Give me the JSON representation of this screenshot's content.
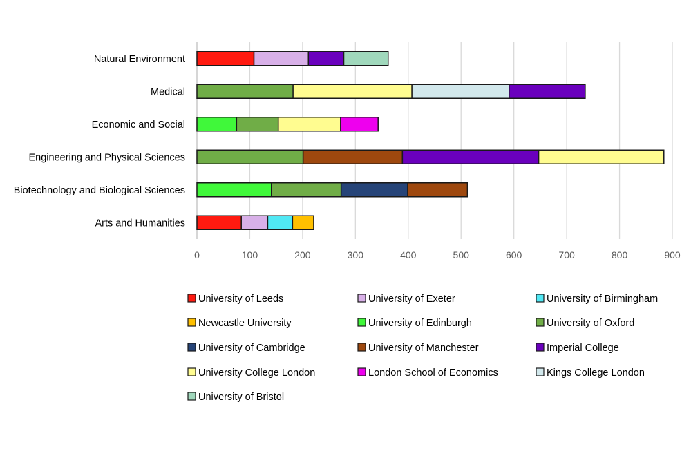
{
  "chart_data": {
    "type": "bar",
    "orientation": "horizontal",
    "stacked": true,
    "title": "",
    "xlabel": "",
    "ylabel": "",
    "xlim": [
      0,
      900
    ],
    "xticks": [
      0,
      100,
      200,
      300,
      400,
      500,
      600,
      700,
      800,
      900
    ],
    "grid": true,
    "legend_position": "bottom",
    "series": [
      {
        "name": "University of Leeds",
        "color": "#ff1a10"
      },
      {
        "name": "University of Exeter",
        "color": "#d8b0e8"
      },
      {
        "name": "University of Birmingham",
        "color": "#50e8f4"
      },
      {
        "name": "Newcastle University",
        "color": "#ffc000"
      },
      {
        "name": "University of Edinburgh",
        "color": "#40f83a"
      },
      {
        "name": "University of Oxford",
        "color": "#70ad47"
      },
      {
        "name": "University of Cambridge",
        "color": "#264478"
      },
      {
        "name": "University of Manchester",
        "color": "#9e480e"
      },
      {
        "name": "Imperial College",
        "color": "#6a00bd"
      },
      {
        "name": "University College London",
        "color": "#fffc90"
      },
      {
        "name": "London School of Economics",
        "color": "#ee00ee"
      },
      {
        "name": "Kings College London",
        "color": "#d2e8ec"
      },
      {
        "name": "University of Bristol",
        "color": "#a0d8bc"
      }
    ],
    "categories": [
      {
        "name": "Natural Environment",
        "segments": [
          {
            "series": "University of Leeds",
            "value": 108
          },
          {
            "series": "University of Exeter",
            "value": 103
          },
          {
            "series": "Imperial College",
            "value": 67
          },
          {
            "series": "University of Bristol",
            "value": 84
          }
        ]
      },
      {
        "name": "Medical",
        "segments": [
          {
            "series": "University of Oxford",
            "value": 182
          },
          {
            "series": "University College London",
            "value": 225
          },
          {
            "series": "Kings College London",
            "value": 184
          },
          {
            "series": "Imperial College",
            "value": 144
          }
        ]
      },
      {
        "name": "Economic and Social",
        "segments": [
          {
            "series": "University of Edinburgh",
            "value": 75
          },
          {
            "series": "University of Oxford",
            "value": 79
          },
          {
            "series": "University College London",
            "value": 118
          },
          {
            "series": "London School of Economics",
            "value": 71
          }
        ]
      },
      {
        "name": "Engineering and Physical Sciences",
        "segments": [
          {
            "series": "University of Oxford",
            "value": 201
          },
          {
            "series": "University of Manchester",
            "value": 188
          },
          {
            "series": "Imperial College",
            "value": 258
          },
          {
            "series": "University College London",
            "value": 237
          }
        ]
      },
      {
        "name": "Biotechnology and Biological Sciences",
        "segments": [
          {
            "series": "University of Edinburgh",
            "value": 141
          },
          {
            "series": "University of Oxford",
            "value": 132
          },
          {
            "series": "University of Cambridge",
            "value": 126
          },
          {
            "series": "University of Manchester",
            "value": 113
          }
        ]
      },
      {
        "name": "Arts and Humanities",
        "segments": [
          {
            "series": "University of Leeds",
            "value": 84
          },
          {
            "series": "University of Exeter",
            "value": 50
          },
          {
            "series": "University of Birmingham",
            "value": 47
          },
          {
            "series": "Newcastle University",
            "value": 40
          }
        ]
      }
    ]
  }
}
